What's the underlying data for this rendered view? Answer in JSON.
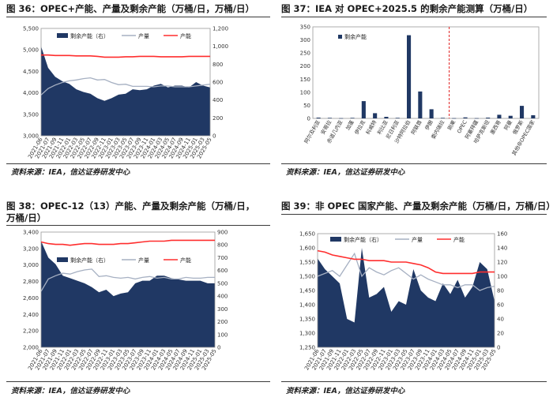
{
  "colors": {
    "area": "#203864",
    "supply": "#a6b0c2",
    "capacity": "#ff2e2e",
    "bar": "#203864",
    "refline": "#e02020"
  },
  "titles": {
    "c36": "图 36：OPEC+产能、产量及剩余产能（万桶/日，万桶/日）",
    "c37": "图 37：IEA 对 OPEC+2025.5 的剩余产能测算（万桶/日）",
    "c38_l1": "图 38：OPEC-12（13）产能、产量及剩余产能（万桶/日，",
    "c38_l2": "万桶/日）",
    "c39": "图 39：非 OPEC 国家产能、产量及剩余产能（万桶/日，万桶/日）"
  },
  "source": "资料来源：IEA，信达证券研发中心",
  "legend": {
    "spare": "剩余产能（右）",
    "supply": "产量",
    "capacity": "产能",
    "bar": "剩余产能"
  },
  "dates": [
    "2021-06",
    "2021-07",
    "2021-09",
    "2021-11",
    "2022-01",
    "2022-03",
    "2022-05",
    "2022-07",
    "2022-09",
    "2022-11",
    "2023-01",
    "2023-03",
    "2023-05",
    "2023-07",
    "2023-09",
    "2023-11",
    "2024-01",
    "2024-03",
    "2024-05",
    "2024-07",
    "2024-09",
    "2024-11",
    "2025-01",
    "2025-03",
    "2025-05"
  ],
  "chart_data": [
    {
      "id": "c36",
      "type": "area",
      "left_axis": {
        "min": 3000,
        "max": 5500,
        "ticks": [
          "3,000",
          "3,500",
          "4,000",
          "4,500",
          "5,000",
          "5,500"
        ]
      },
      "right_axis": {
        "min": 0,
        "max": 1200,
        "ticks": [
          "0",
          "200",
          "400",
          "600",
          "800",
          "1,000",
          "1,200"
        ]
      },
      "series": [
        {
          "name": "剩余产能（右）",
          "axis": "right",
          "values": [
            1000,
            760,
            660,
            610,
            580,
            520,
            490,
            470,
            420,
            390,
            420,
            460,
            470,
            520,
            510,
            520,
            560,
            580,
            540,
            560,
            560,
            540,
            600,
            560,
            540
          ]
        },
        {
          "name": "产量",
          "axis": "left",
          "values": [
            3950,
            4100,
            4180,
            4240,
            4280,
            4300,
            4330,
            4350,
            4300,
            4310,
            4240,
            4190,
            4200,
            4150,
            4150,
            4150,
            4140,
            4160,
            4160,
            4140,
            4140,
            4140,
            4160,
            4180,
            4200
          ]
        },
        {
          "name": "产能",
          "axis": "left",
          "values": [
            4880,
            4880,
            4870,
            4870,
            4870,
            4860,
            4860,
            4860,
            4850,
            4830,
            4830,
            4830,
            4840,
            4840,
            4850,
            4850,
            4850,
            4840,
            4840,
            4840,
            4840,
            4850,
            4850,
            4850,
            4850
          ]
        }
      ]
    },
    {
      "id": "c37",
      "type": "bar",
      "y_axis": {
        "min": 0,
        "max": 350,
        "ticks": [
          "0",
          "50",
          "100",
          "150",
          "200",
          "250",
          "300",
          "350"
        ]
      },
      "categories": [
        "阿尔及利亚",
        "安哥拉",
        "赤道几内亚",
        "加蓬",
        "伊拉克",
        "科威特",
        "利比亚",
        "尼日利亚",
        "沙特阿拉伯",
        "阿联酋",
        "伊朗",
        "委内瑞拉",
        "刚果",
        "OPEC",
        "阿塞拜疆",
        "哈萨克斯坦",
        "墨西哥",
        "阿曼",
        "俄罗斯",
        "其他非OPEC国家"
      ],
      "values": [
        3,
        2,
        1,
        2,
        66,
        20,
        6,
        2,
        318,
        103,
        35,
        2,
        1,
        4,
        1,
        3,
        14,
        10,
        48,
        12
      ],
      "reference_after": "委内瑞拉"
    },
    {
      "id": "c38",
      "type": "area",
      "left_axis": {
        "min": 2000,
        "max": 3400,
        "ticks": [
          "2,000",
          "2,200",
          "2,400",
          "2,600",
          "2,800",
          "3,000",
          "3,200",
          "3,400"
        ]
      },
      "right_axis": {
        "min": 0,
        "max": 900,
        "ticks": [
          "0",
          "100",
          "200",
          "300",
          "400",
          "500",
          "600",
          "700",
          "800",
          "900"
        ]
      },
      "series": [
        {
          "name": "剩余产能（右）",
          "axis": "right",
          "values": [
            830,
            700,
            650,
            560,
            540,
            520,
            500,
            470,
            430,
            450,
            400,
            420,
            430,
            500,
            520,
            520,
            560,
            560,
            540,
            530,
            520,
            520,
            520,
            500,
            500
          ]
        },
        {
          "name": "产量",
          "axis": "left",
          "values": [
            2680,
            2830,
            2870,
            2900,
            2890,
            2920,
            2940,
            2950,
            2860,
            2870,
            2850,
            2840,
            2850,
            2830,
            2850,
            2860,
            2840,
            2850,
            2830,
            2830,
            2850,
            2840,
            2840,
            2850,
            2850
          ]
        },
        {
          "name": "产能",
          "axis": "left",
          "values": [
            3280,
            3260,
            3250,
            3250,
            3240,
            3250,
            3260,
            3260,
            3250,
            3250,
            3250,
            3260,
            3260,
            3270,
            3280,
            3290,
            3290,
            3290,
            3300,
            3300,
            3300,
            3300,
            3300,
            3300,
            3300
          ]
        }
      ]
    },
    {
      "id": "c39",
      "type": "area",
      "left_axis": {
        "min": 1250,
        "max": 1650,
        "ticks": [
          "1,250",
          "1,300",
          "1,350",
          "1,400",
          "1,450",
          "1,500",
          "1,550",
          "1,600",
          "1,650"
        ]
      },
      "right_axis": {
        "min": 0,
        "max": 160,
        "ticks": [
          "0",
          "20",
          "40",
          "60",
          "80",
          "100",
          "120",
          "140",
          "160"
        ]
      },
      "series": [
        {
          "name": "剩余产能（右）",
          "axis": "right",
          "values": [
            125,
            110,
            100,
            90,
            40,
            35,
            140,
            70,
            75,
            85,
            50,
            65,
            60,
            110,
            80,
            70,
            65,
            90,
            75,
            95,
            70,
            85,
            120,
            110,
            65
          ]
        },
        {
          "name": "产量",
          "axis": "left",
          "values": [
            1500,
            1510,
            1520,
            1500,
            1540,
            1580,
            1500,
            1530,
            1515,
            1505,
            1520,
            1530,
            1510,
            1490,
            1505,
            1490,
            1480,
            1470,
            1470,
            1460,
            1470,
            1470,
            1450,
            1460,
            1465
          ]
        },
        {
          "name": "产能",
          "axis": "left",
          "values": [
            1590,
            1585,
            1575,
            1570,
            1565,
            1560,
            1560,
            1555,
            1555,
            1555,
            1550,
            1550,
            1550,
            1545,
            1540,
            1530,
            1515,
            1510,
            1510,
            1510,
            1510,
            1510,
            1515,
            1515,
            1515
          ]
        }
      ]
    }
  ]
}
